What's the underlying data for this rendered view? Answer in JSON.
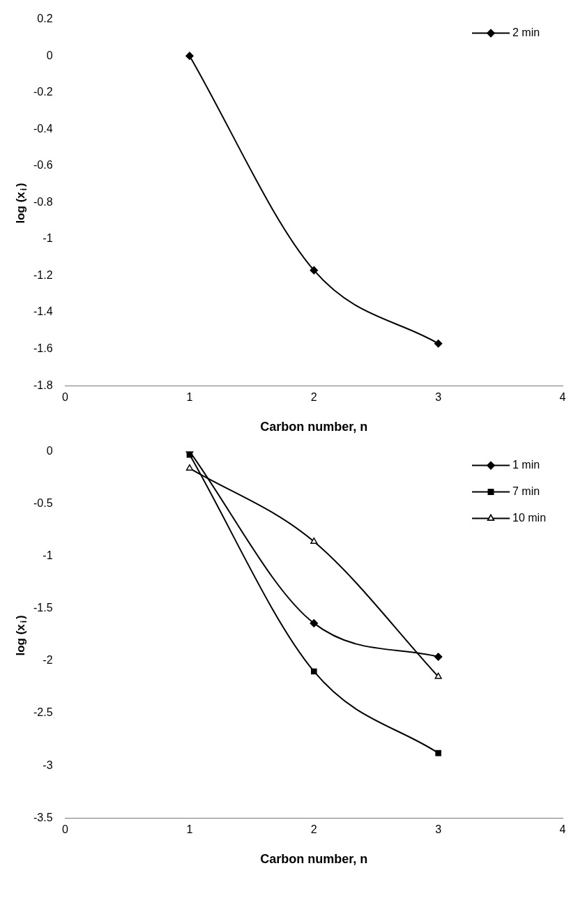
{
  "chart_data": [
    {
      "type": "line",
      "xlabel": "Carbon number, n",
      "ylabel": "log (x$_{i}$)",
      "x": [
        1,
        2,
        3
      ],
      "xlim": [
        0,
        4
      ],
      "xticks": [
        0,
        1,
        2,
        3,
        4
      ],
      "ylim": [
        -1.8,
        0.2
      ],
      "yticks": [
        -1.8,
        -1.6,
        -1.4,
        -1.2,
        -1,
        -0.8,
        -0.6,
        -0.4,
        -0.2,
        0,
        0.2
      ],
      "grid": false,
      "legend": "top right",
      "series": [
        {
          "name": "2 min",
          "color": "#000000",
          "marker": "diamond",
          "values": [
            0,
            -1.17,
            -1.57
          ]
        }
      ]
    },
    {
      "type": "line",
      "xlabel": "Carbon number, n",
      "ylabel": "log (x$_{i}$)",
      "x": [
        1,
        2,
        3
      ],
      "xlim": [
        0,
        4
      ],
      "xticks": [
        0,
        1,
        2,
        3,
        4
      ],
      "ylim": [
        -3.5,
        0
      ],
      "yticks": [
        -3.5,
        -3,
        -2.5,
        -2,
        -1.5,
        -1,
        -0.5,
        0
      ],
      "grid": false,
      "legend": "top right",
      "series": [
        {
          "name": "1 min",
          "color": "#000000",
          "marker": "diamond",
          "values": [
            0,
            -1.64,
            -1.96
          ]
        },
        {
          "name": "7 min",
          "color": "#000000",
          "marker": "square",
          "values": [
            -0.03,
            -2.1,
            -2.88
          ]
        },
        {
          "name": "10 min",
          "color": "#000000",
          "marker": "triangle",
          "values": [
            -0.16,
            -0.86,
            -2.15
          ]
        }
      ]
    }
  ]
}
